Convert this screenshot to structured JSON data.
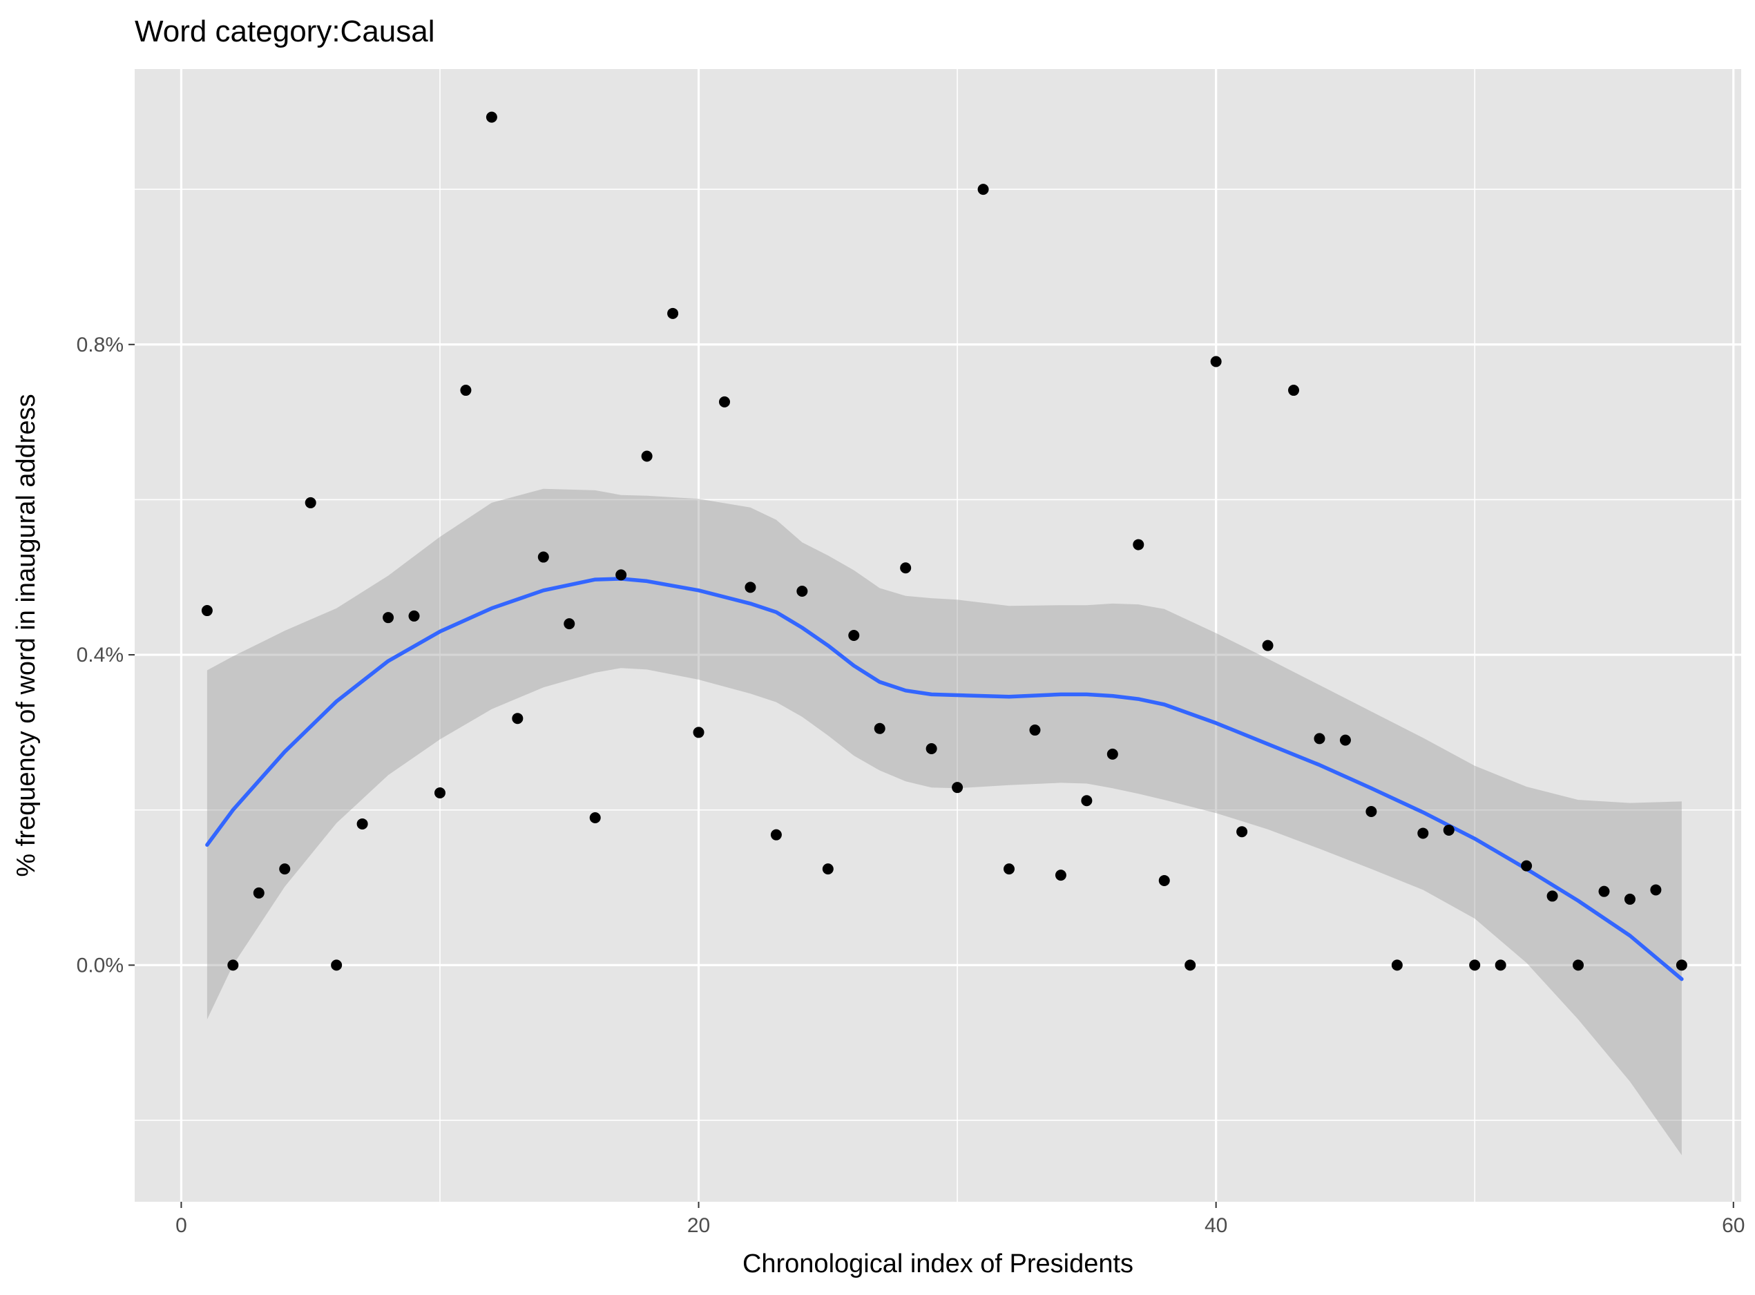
{
  "chart_data": {
    "type": "scatter",
    "title": "Word category:Causal",
    "xlabel": "Chronological index of Presidents",
    "ylabel": "% frequency of word in inaugural address",
    "xlim": [
      -1.8,
      60.3
    ],
    "ylim": [
      -0.305,
      1.155
    ],
    "x_ticks": [
      0,
      20,
      40,
      60
    ],
    "x_tick_labels": [
      "0",
      "20",
      "40",
      "60"
    ],
    "y_ticks": [
      0.0,
      0.4,
      0.8
    ],
    "y_tick_labels": [
      "0.0%",
      "0.4%",
      "0.8%"
    ],
    "y_minor_ticks": [
      -0.2,
      0.2,
      0.6,
      1.0
    ],
    "x_minor_ticks": [
      10,
      30,
      50
    ],
    "grid": true,
    "colors": {
      "panel": "#e5e5e5",
      "grid": "#ffffff",
      "points": "#000000",
      "smooth_line": "#3366ff",
      "confidence_band": "#bdbdbd"
    },
    "points": {
      "x": [
        1,
        2,
        3,
        4,
        5,
        6,
        7,
        8,
        9,
        10,
        11,
        12,
        13,
        14,
        15,
        16,
        17,
        18,
        19,
        20,
        21,
        22,
        23,
        24,
        25,
        26,
        27,
        28,
        29,
        30,
        31,
        32,
        33,
        34,
        35,
        36,
        37,
        38,
        39,
        40,
        41,
        42,
        43,
        44,
        45,
        46,
        47,
        48,
        49,
        50,
        51,
        52,
        53,
        54,
        55,
        56,
        57,
        58
      ],
      "y": [
        0.457,
        0.0,
        0.093,
        0.124,
        0.596,
        0.0,
        0.182,
        0.448,
        0.45,
        0.222,
        0.741,
        1.093,
        0.318,
        0.526,
        0.44,
        0.19,
        0.503,
        0.656,
        0.84,
        0.3,
        0.726,
        0.487,
        0.168,
        0.482,
        0.124,
        0.425,
        0.305,
        0.512,
        0.279,
        0.229,
        1.0,
        0.124,
        0.303,
        0.116,
        0.212,
        0.272,
        0.542,
        0.109,
        0.0,
        0.778,
        0.172,
        0.412,
        0.741,
        0.292,
        0.29,
        0.198,
        0.0,
        0.17,
        0.174,
        0.0,
        0.0,
        0.128,
        0.089,
        0.0,
        0.095,
        0.085,
        0.097,
        0.0
      ]
    },
    "smooth": {
      "x": [
        1,
        2,
        4,
        6,
        8,
        10,
        12,
        14,
        16,
        17,
        18,
        20,
        22,
        23,
        24,
        25,
        26,
        27,
        28,
        29,
        30,
        32,
        34,
        35,
        36,
        37,
        38,
        40,
        42,
        44,
        46,
        48,
        50,
        52,
        54,
        56,
        58
      ],
      "y": [
        0.155,
        0.2,
        0.275,
        0.34,
        0.392,
        0.43,
        0.46,
        0.483,
        0.497,
        0.498,
        0.495,
        0.483,
        0.466,
        0.455,
        0.435,
        0.412,
        0.386,
        0.365,
        0.354,
        0.349,
        0.348,
        0.346,
        0.349,
        0.349,
        0.347,
        0.343,
        0.336,
        0.312,
        0.285,
        0.258,
        0.228,
        0.197,
        0.163,
        0.124,
        0.083,
        0.038,
        -0.018
      ],
      "lower": [
        -0.07,
        0.0,
        0.101,
        0.183,
        0.245,
        0.291,
        0.33,
        0.358,
        0.377,
        0.383,
        0.381,
        0.368,
        0.35,
        0.339,
        0.32,
        0.296,
        0.27,
        0.251,
        0.237,
        0.229,
        0.228,
        0.232,
        0.235,
        0.234,
        0.228,
        0.221,
        0.213,
        0.196,
        0.175,
        0.15,
        0.124,
        0.097,
        0.06,
        0.003,
        -0.07,
        -0.15,
        -0.245
      ],
      "upper": [
        0.38,
        0.398,
        0.431,
        0.46,
        0.502,
        0.552,
        0.596,
        0.614,
        0.612,
        0.606,
        0.605,
        0.601,
        0.59,
        0.574,
        0.545,
        0.528,
        0.509,
        0.486,
        0.476,
        0.473,
        0.471,
        0.463,
        0.464,
        0.464,
        0.466,
        0.465,
        0.459,
        0.428,
        0.395,
        0.361,
        0.327,
        0.293,
        0.257,
        0.23,
        0.213,
        0.209,
        0.211
      ]
    }
  }
}
